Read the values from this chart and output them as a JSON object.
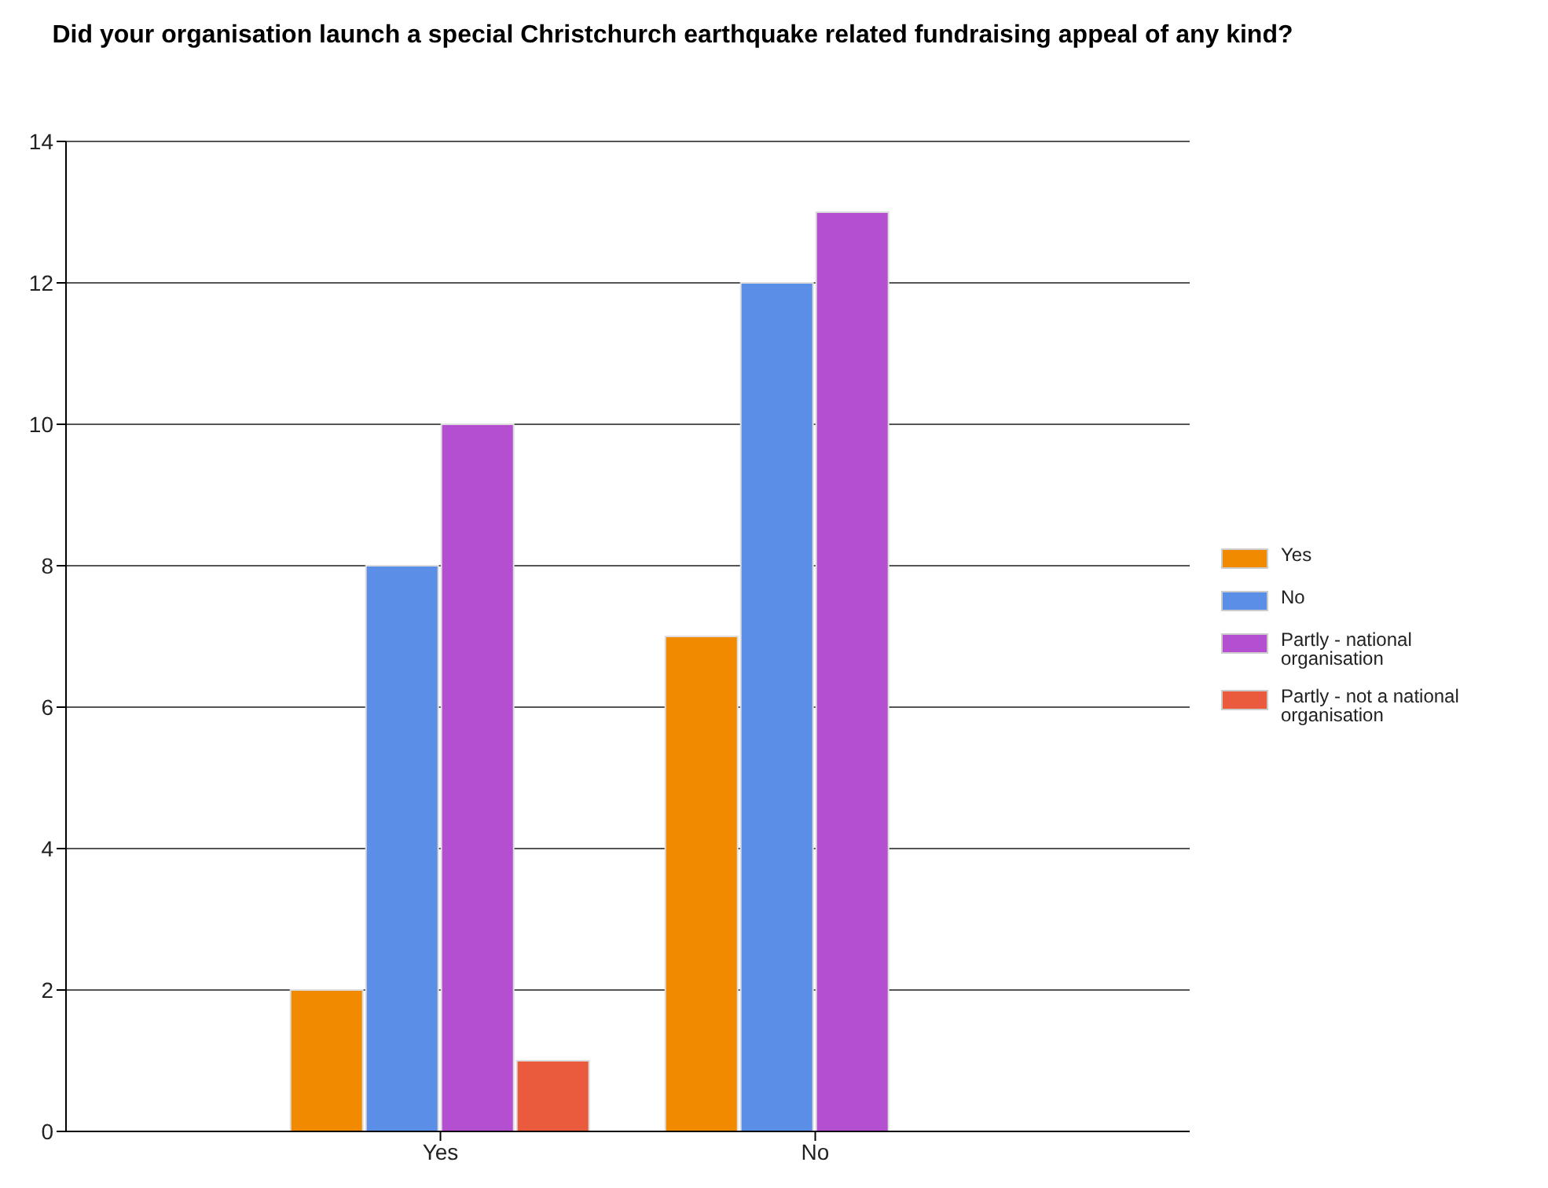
{
  "chart_data": {
    "type": "bar",
    "title": "Did your organisation launch a special Christchurch earthquake related fundraising appeal of any kind?",
    "categories": [
      "Yes",
      "No"
    ],
    "series": [
      {
        "name": "Yes",
        "color": "#f28a00",
        "values": [
          2,
          7
        ]
      },
      {
        "name": "No",
        "color": "#5b8ee6",
        "values": [
          8,
          12
        ]
      },
      {
        "name": "Partly - national organisation",
        "color": "#b44fd2",
        "values": [
          10,
          13
        ]
      },
      {
        "name": "Partly - not a national organisation",
        "color": "#ea5a3c",
        "values": [
          1,
          0
        ]
      }
    ],
    "ylim": [
      0,
      14
    ],
    "yticks": [
      0,
      2,
      4,
      6,
      8,
      10,
      12,
      14
    ],
    "grid": "y",
    "legend": "right"
  }
}
